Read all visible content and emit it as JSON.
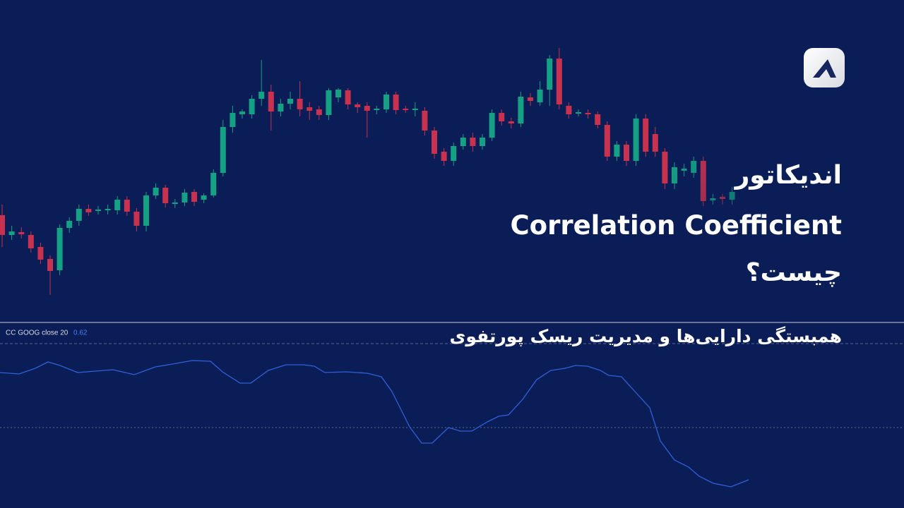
{
  "header": {
    "title_lines": [
      "اندیکاتور",
      "Correlation Coefficient",
      "چیست؟"
    ],
    "subtitle": "همبستگی دارایی‌ها و مدیریت ریسک پورتفوی"
  },
  "chart_data": [
    {
      "type": "candlestick",
      "ylim": [
        0,
        450
      ],
      "up_color": "#14a184",
      "down_color": "#c8324e",
      "open": [
        145,
        117,
        121,
        117,
        100,
        83,
        67,
        127,
        137,
        154,
        151,
        152,
        152,
        167,
        150,
        130,
        173,
        184,
        161,
        163,
        178,
        167,
        173,
        205,
        270,
        288,
        288,
        310,
        320,
        292,
        303,
        310,
        298,
        295,
        287,
        312,
        322,
        302,
        300,
        294,
        295,
        316,
        296,
        294,
        293,
        265,
        235,
        222,
        243,
        255,
        243,
        255,
        290,
        278,
        275,
        312,
        305,
        323,
        367,
        300,
        289,
        290,
        288,
        273,
        228,
        245,
        222,
        282,
        260,
        235,
        190,
        208,
        205,
        222,
        166,
        171,
        167
      ],
      "high": [
        160,
        130,
        128,
        122,
        106,
        88,
        132,
        142,
        160,
        160,
        158,
        160,
        172,
        172,
        155,
        178,
        190,
        188,
        168,
        182,
        182,
        176,
        210,
        280,
        300,
        295,
        315,
        365,
        330,
        310,
        320,
        335,
        305,
        300,
        325,
        325,
        325,
        305,
        305,
        300,
        320,
        320,
        300,
        305,
        298,
        270,
        240,
        248,
        260,
        262,
        260,
        295,
        295,
        283,
        320,
        318,
        335,
        372,
        382,
        305,
        295,
        295,
        292,
        278,
        250,
        250,
        288,
        288,
        270,
        240,
        220,
        218,
        228,
        228,
        175,
        175,
        185
      ],
      "low": [
        100,
        110,
        112,
        92,
        76,
        32,
        60,
        120,
        130,
        144,
        146,
        146,
        146,
        144,
        122,
        122,
        168,
        156,
        155,
        158,
        158,
        162,
        170,
        200,
        262,
        282,
        282,
        300,
        265,
        285,
        295,
        285,
        280,
        280,
        280,
        305,
        295,
        290,
        255,
        288,
        290,
        288,
        290,
        285,
        258,
        225,
        215,
        215,
        238,
        235,
        238,
        250,
        272,
        268,
        270,
        300,
        300,
        300,
        295,
        282,
        285,
        282,
        268,
        222,
        222,
        215,
        215,
        228,
        228,
        182,
        182,
        200,
        198,
        158,
        160,
        160,
        160
      ],
      "close": [
        117,
        122,
        118,
        98,
        82,
        66,
        127,
        137,
        154,
        149,
        153,
        154,
        167,
        150,
        130,
        173,
        184,
        162,
        163,
        177,
        164,
        173,
        205,
        270,
        290,
        292,
        310,
        320,
        292,
        303,
        310,
        295,
        293,
        287,
        322,
        323,
        302,
        298,
        293,
        296,
        316,
        294,
        294,
        296,
        265,
        232,
        222,
        243,
        255,
        243,
        255,
        290,
        278,
        275,
        313,
        307,
        323,
        367,
        302,
        288,
        291,
        288,
        273,
        228,
        245,
        222,
        282,
        235,
        235,
        190,
        213,
        211,
        222,
        165,
        169,
        168,
        178
      ]
    },
    {
      "type": "line",
      "legend_label": "CC GOOG close 20",
      "last_value": 0.62,
      "color": "#3060d8",
      "xlim": [
        0,
        1280
      ],
      "ylim": [
        0,
        260
      ],
      "ref_lines": [
        233,
        114
      ],
      "x": [
        0,
        27,
        50,
        68,
        85,
        110,
        135,
        160,
        190,
        220,
        250,
        272,
        298,
        315,
        340,
        355,
        380,
        405,
        430,
        445,
        460,
        490,
        520,
        540,
        555,
        580,
        597,
        612,
        635,
        652,
        668,
        690,
        706,
        720,
        740,
        760,
        780,
        800,
        815,
        832,
        850,
        862,
        880,
        900,
        920,
        935,
        955,
        975,
        990,
        1010,
        1035,
        1060
      ],
      "values": [
        192,
        190,
        198,
        207,
        202,
        192,
        194,
        196,
        189,
        200,
        205,
        209,
        208,
        193,
        177,
        177,
        195,
        203,
        203,
        201,
        192,
        193,
        191,
        186,
        165,
        115,
        92,
        92,
        114,
        109,
        109,
        122,
        130,
        132,
        154,
        182,
        195,
        198,
        202,
        201,
        195,
        188,
        186,
        164,
        142,
        95,
        68,
        58,
        45,
        35,
        30,
        40
      ]
    }
  ]
}
